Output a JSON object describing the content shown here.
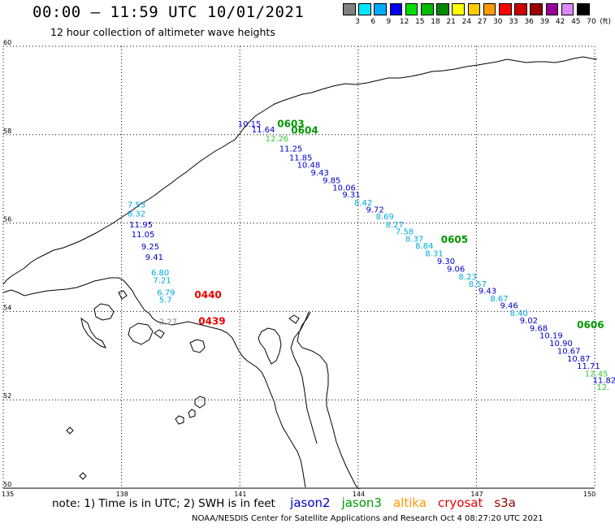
{
  "header": {
    "title": "00:00 – 11:59 UTC 10/01/2021",
    "subtitle": "12 hour collection of altimeter wave heights"
  },
  "scale": {
    "unit": "(ft)",
    "bins": [
      {
        "label": "3",
        "color": "#808080"
      },
      {
        "label": "6",
        "color": "#00e5ff"
      },
      {
        "label": "9",
        "color": "#00aaff"
      },
      {
        "label": "12",
        "color": "#0000ee"
      },
      {
        "label": "15",
        "color": "#00dd00"
      },
      {
        "label": "18",
        "color": "#00bb00"
      },
      {
        "label": "21",
        "color": "#008800"
      },
      {
        "label": "24",
        "color": "#ffff00"
      },
      {
        "label": "27",
        "color": "#ffcc00"
      },
      {
        "label": "30",
        "color": "#ff9900"
      },
      {
        "label": "33",
        "color": "#ff0000"
      },
      {
        "label": "36",
        "color": "#cc0000"
      },
      {
        "label": "39",
        "color": "#990000"
      },
      {
        "label": "42",
        "color": "#990099"
      },
      {
        "label": "45",
        "color": "#dd88ff"
      },
      {
        "label": "70",
        "color": "#000000"
      }
    ]
  },
  "axes": {
    "lat_labels": [
      "60",
      "58",
      "56",
      "54",
      "52",
      "50"
    ],
    "lon_labels": [
      "135",
      "138",
      "141",
      "144",
      "147",
      "150"
    ],
    "lat_values": [
      60,
      58,
      56,
      54,
      52,
      50
    ],
    "lon_values": [
      135,
      138,
      141,
      144,
      147,
      150
    ]
  },
  "observations": [
    {
      "value": "10.15",
      "color": "#0000cc",
      "lon": 140.95,
      "lat": 58.18
    },
    {
      "value": "11.64",
      "color": "#0000cc",
      "lon": 141.3,
      "lat": 58.05
    },
    {
      "value": "12.26",
      "color": "#33cc33",
      "lon": 141.65,
      "lat": 57.85
    },
    {
      "value": "11.25",
      "color": "#0000cc",
      "lon": 142.0,
      "lat": 57.62
    },
    {
      "value": "11.85",
      "color": "#0000cc",
      "lon": 142.25,
      "lat": 57.42
    },
    {
      "value": "10.48",
      "color": "#0000cc",
      "lon": 142.45,
      "lat": 57.25
    },
    {
      "value": "9.43",
      "color": "#0000cc",
      "lon": 142.8,
      "lat": 57.08
    },
    {
      "value": "9.85",
      "color": "#0000cc",
      "lon": 143.1,
      "lat": 56.9
    },
    {
      "value": "10.06",
      "color": "#0000cc",
      "lon": 143.35,
      "lat": 56.74
    },
    {
      "value": "9.31",
      "color": "#0000cc",
      "lon": 143.6,
      "lat": 56.58
    },
    {
      "value": "8.42",
      "color": "#00aadd",
      "lon": 143.9,
      "lat": 56.4
    },
    {
      "value": "9.72",
      "color": "#0000cc",
      "lon": 144.2,
      "lat": 56.24
    },
    {
      "value": "8.69",
      "color": "#00aadd",
      "lon": 144.45,
      "lat": 56.08
    },
    {
      "value": "8.27",
      "color": "#00aadd",
      "lon": 144.7,
      "lat": 55.9
    },
    {
      "value": "7.58",
      "color": "#00aadd",
      "lon": 144.95,
      "lat": 55.74
    },
    {
      "value": "8.37",
      "color": "#00aadd",
      "lon": 145.2,
      "lat": 55.58
    },
    {
      "value": "8.84",
      "color": "#00aadd",
      "lon": 145.45,
      "lat": 55.42
    },
    {
      "value": "8.31",
      "color": "#00aadd",
      "lon": 145.7,
      "lat": 55.25
    },
    {
      "value": "9.30",
      "color": "#0000cc",
      "lon": 146.0,
      "lat": 55.07
    },
    {
      "value": "9.06",
      "color": "#0000cc",
      "lon": 146.25,
      "lat": 54.9
    },
    {
      "value": "8.23",
      "color": "#00aadd",
      "lon": 146.55,
      "lat": 54.72
    },
    {
      "value": "8.57",
      "color": "#00aadd",
      "lon": 146.8,
      "lat": 54.56
    },
    {
      "value": "9.43",
      "color": "#0000cc",
      "lon": 147.05,
      "lat": 54.4
    },
    {
      "value": "8.67",
      "color": "#00aadd",
      "lon": 147.35,
      "lat": 54.23
    },
    {
      "value": "9.46",
      "color": "#0000cc",
      "lon": 147.6,
      "lat": 54.07
    },
    {
      "value": "8.40",
      "color": "#00aadd",
      "lon": 147.85,
      "lat": 53.9
    },
    {
      "value": "9.02",
      "color": "#0000cc",
      "lon": 148.1,
      "lat": 53.73
    },
    {
      "value": "9.68",
      "color": "#0000cc",
      "lon": 148.35,
      "lat": 53.56
    },
    {
      "value": "10.19",
      "color": "#0000cc",
      "lon": 148.6,
      "lat": 53.39
    },
    {
      "value": "10.90",
      "color": "#0000cc",
      "lon": 148.85,
      "lat": 53.22
    },
    {
      "value": "10.67",
      "color": "#0000cc",
      "lon": 149.05,
      "lat": 53.04
    },
    {
      "value": "10.87",
      "color": "#0000cc",
      "lon": 149.3,
      "lat": 52.87
    },
    {
      "value": "11.71",
      "color": "#0000cc",
      "lon": 149.55,
      "lat": 52.7
    },
    {
      "value": "12.45",
      "color": "#33cc33",
      "lon": 149.75,
      "lat": 52.53
    },
    {
      "value": "11.82",
      "color": "#0000cc",
      "lon": 149.95,
      "lat": 52.38
    },
    {
      "value": "12.",
      "color": "#33cc33",
      "lon": 150.05,
      "lat": 52.22
    },
    {
      "value": "7.53",
      "color": "#00aadd",
      "lon": 138.15,
      "lat": 56.35
    },
    {
      "value": "8.32",
      "color": "#00aadd",
      "lon": 138.15,
      "lat": 56.15
    },
    {
      "value": "11.95",
      "color": "#0000cc",
      "lon": 138.2,
      "lat": 55.9
    },
    {
      "value": "11.05",
      "color": "#0000cc",
      "lon": 138.25,
      "lat": 55.68
    },
    {
      "value": "9.25",
      "color": "#0000cc",
      "lon": 138.5,
      "lat": 55.4
    },
    {
      "value": "9.41",
      "color": "#0000cc",
      "lon": 138.6,
      "lat": 55.17
    },
    {
      "value": "6.80",
      "color": "#00aadd",
      "lon": 138.75,
      "lat": 54.82
    },
    {
      "value": "7.21",
      "color": "#00aadd",
      "lon": 138.8,
      "lat": 54.64
    },
    {
      "value": "6.79",
      "color": "#00aadd",
      "lon": 138.9,
      "lat": 54.37
    },
    {
      "value": "5.7",
      "color": "#00aadd",
      "lon": 138.95,
      "lat": 54.2
    },
    {
      "value": "2.27",
      "color": "#888888",
      "lon": 138.95,
      "lat": 53.7
    }
  ],
  "passes": [
    {
      "time": "0603",
      "color": "#009900",
      "lon": 141.95,
      "lat": 58.17
    },
    {
      "time": "0604",
      "color": "#009900",
      "lon": 142.3,
      "lat": 58.02
    },
    {
      "time": "0605",
      "color": "#009900",
      "lon": 146.1,
      "lat": 55.55
    },
    {
      "time": "0606",
      "color": "#009900",
      "lon": 149.55,
      "lat": 53.62
    },
    {
      "time": "0440",
      "color": "#ee0000",
      "lon": 139.85,
      "lat": 54.3
    },
    {
      "time": "0439",
      "color": "#ee0000",
      "lon": 139.95,
      "lat": 53.7
    }
  ],
  "footer": {
    "note": "note:  1) Time is in UTC;  2) SWH is in feet",
    "legend": [
      {
        "label": "jason2",
        "color": "#0000cc"
      },
      {
        "label": "jason3",
        "color": "#009900"
      },
      {
        "label": "altika",
        "color": "#ff9900"
      },
      {
        "label": "cryosat",
        "color": "#ee0000"
      },
      {
        "label": "s3a",
        "color": "#990000"
      }
    ],
    "credit": "NOAA/NESDIS Center for Satellite Applications and Research     Oct  4 08:27:20 UTC 2021"
  }
}
